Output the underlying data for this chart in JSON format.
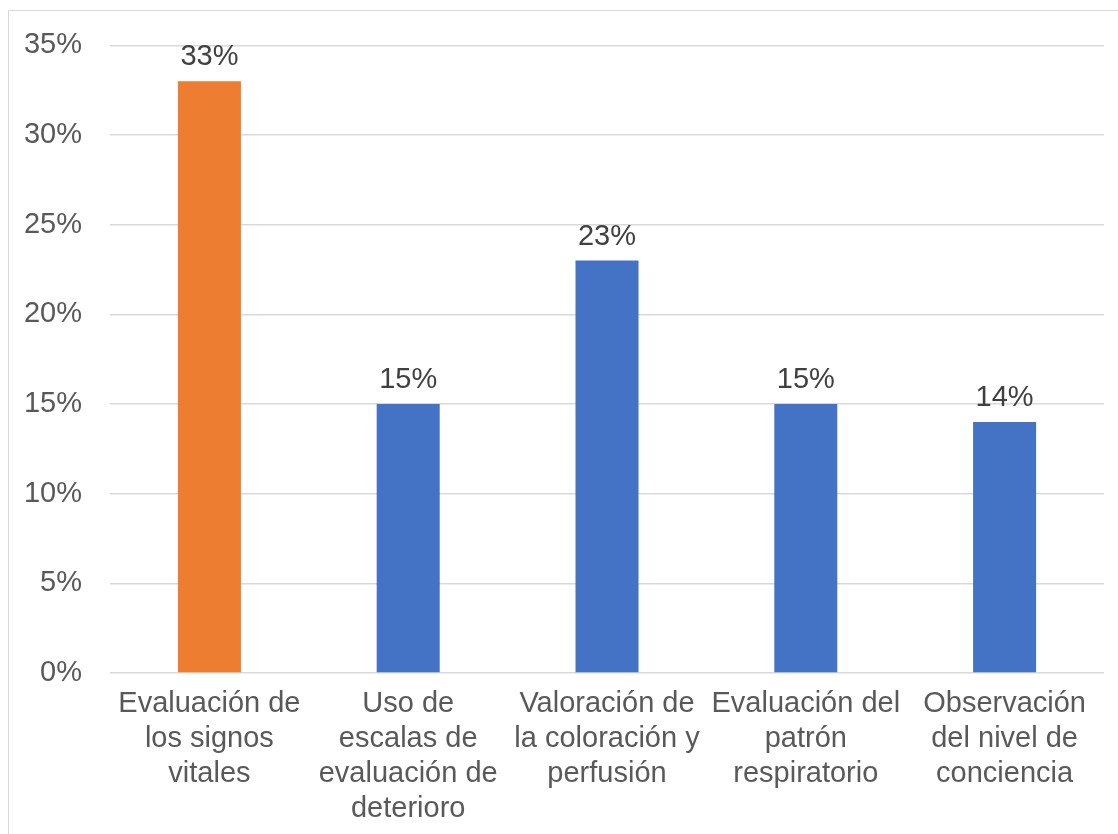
{
  "chart_data": {
    "type": "bar",
    "categories": [
      "Evaluación de los signos vitales",
      "Uso de escalas de evaluación de deterioro",
      "Valoración de la coloración y perfusión",
      "Evaluación del patrón respiratorio",
      "Observación del nivel de conciencia"
    ],
    "values": [
      33,
      15,
      23,
      15,
      14
    ],
    "colors": [
      "#ed7d31",
      "#4472c4",
      "#4472c4",
      "#4472c4",
      "#4472c4"
    ],
    "value_labels": [
      "33%",
      "15%",
      "23%",
      "15%",
      "14%"
    ],
    "ylim": [
      0,
      35
    ],
    "yticks": [
      {
        "value": 0,
        "label": "0%"
      },
      {
        "value": 5,
        "label": "5%"
      },
      {
        "value": 10,
        "label": "10%"
      },
      {
        "value": 15,
        "label": "15%"
      },
      {
        "value": 20,
        "label": "20%"
      },
      {
        "value": 25,
        "label": "25%"
      },
      {
        "value": 30,
        "label": "30%"
      },
      {
        "value": 35,
        "label": "35%"
      }
    ],
    "grid": "y"
  }
}
